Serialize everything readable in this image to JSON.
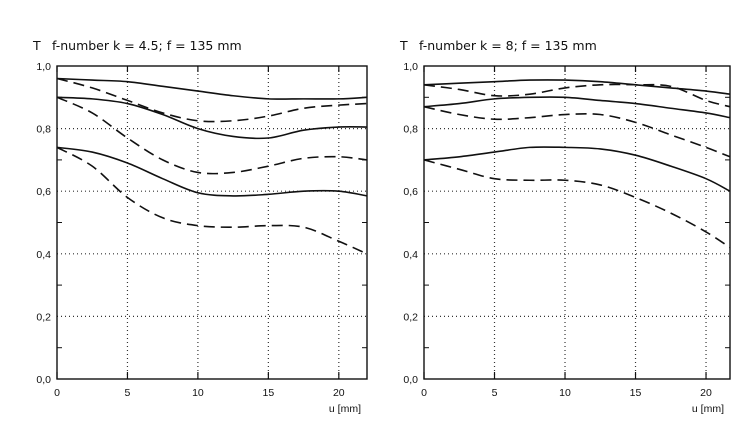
{
  "chart_data": [
    {
      "type": "line",
      "title": "f-number k = 4.5; f = 135 mm",
      "ylabel": "T",
      "xlabel": "u [mm]",
      "xlim": [
        0,
        22
      ],
      "ylim": [
        0,
        1.0
      ],
      "xticks": [
        "0",
        "5",
        "10",
        "15",
        "20"
      ],
      "yticks": [
        "0,0",
        "0,2",
        "0,4",
        "0,6",
        "0,8",
        "1,0"
      ],
      "grid": true,
      "x": [
        0,
        2.5,
        5,
        7.5,
        10,
        12.5,
        15,
        17.5,
        20,
        22
      ],
      "series": [
        {
          "name": "solid-1",
          "style": "solid",
          "values": [
            0.96,
            0.955,
            0.95,
            0.935,
            0.92,
            0.905,
            0.895,
            0.895,
            0.895,
            0.9
          ]
        },
        {
          "name": "dashed-1",
          "style": "dashed",
          "values": [
            0.96,
            0.93,
            0.89,
            0.85,
            0.825,
            0.825,
            0.84,
            0.865,
            0.875,
            0.88
          ]
        },
        {
          "name": "solid-2",
          "style": "solid",
          "values": [
            0.9,
            0.895,
            0.88,
            0.845,
            0.8,
            0.775,
            0.77,
            0.795,
            0.805,
            0.805
          ]
        },
        {
          "name": "dashed-2",
          "style": "dashed",
          "values": [
            0.9,
            0.85,
            0.77,
            0.7,
            0.66,
            0.66,
            0.68,
            0.705,
            0.71,
            0.7
          ]
        },
        {
          "name": "solid-3",
          "style": "solid",
          "values": [
            0.74,
            0.725,
            0.69,
            0.64,
            0.595,
            0.585,
            0.59,
            0.6,
            0.6,
            0.585
          ]
        },
        {
          "name": "dashed-3",
          "style": "dashed",
          "values": [
            0.74,
            0.68,
            0.58,
            0.515,
            0.49,
            0.485,
            0.49,
            0.485,
            0.44,
            0.4
          ]
        }
      ]
    },
    {
      "type": "line",
      "title": "f-number k = 8; f = 135 mm",
      "ylabel": "T",
      "xlabel": "u [mm]",
      "xlim": [
        0,
        21.7
      ],
      "ylim": [
        0,
        1.0
      ],
      "xticks": [
        "0",
        "5",
        "10",
        "15",
        "20"
      ],
      "yticks": [
        "0,0",
        "0,2",
        "0,4",
        "0,6",
        "0,8",
        "1,0"
      ],
      "grid": true,
      "x": [
        0,
        2.5,
        5,
        7.5,
        10,
        12.5,
        15,
        17.5,
        20,
        21.7
      ],
      "series": [
        {
          "name": "solid-1",
          "style": "solid",
          "values": [
            0.94,
            0.945,
            0.95,
            0.955,
            0.955,
            0.95,
            0.94,
            0.93,
            0.92,
            0.91
          ]
        },
        {
          "name": "dashed-1",
          "style": "dashed",
          "values": [
            0.94,
            0.925,
            0.905,
            0.91,
            0.93,
            0.94,
            0.94,
            0.935,
            0.89,
            0.87
          ]
        },
        {
          "name": "solid-2",
          "style": "solid",
          "values": [
            0.87,
            0.88,
            0.895,
            0.9,
            0.9,
            0.89,
            0.88,
            0.865,
            0.85,
            0.835
          ]
        },
        {
          "name": "dashed-2",
          "style": "dashed",
          "values": [
            0.87,
            0.845,
            0.83,
            0.835,
            0.845,
            0.845,
            0.82,
            0.78,
            0.74,
            0.71
          ]
        },
        {
          "name": "solid-3",
          "style": "solid",
          "values": [
            0.7,
            0.71,
            0.725,
            0.74,
            0.74,
            0.735,
            0.715,
            0.68,
            0.64,
            0.6
          ]
        },
        {
          "name": "dashed-3",
          "style": "dashed",
          "values": [
            0.7,
            0.67,
            0.64,
            0.635,
            0.635,
            0.62,
            0.58,
            0.53,
            0.47,
            0.42
          ]
        }
      ]
    }
  ]
}
